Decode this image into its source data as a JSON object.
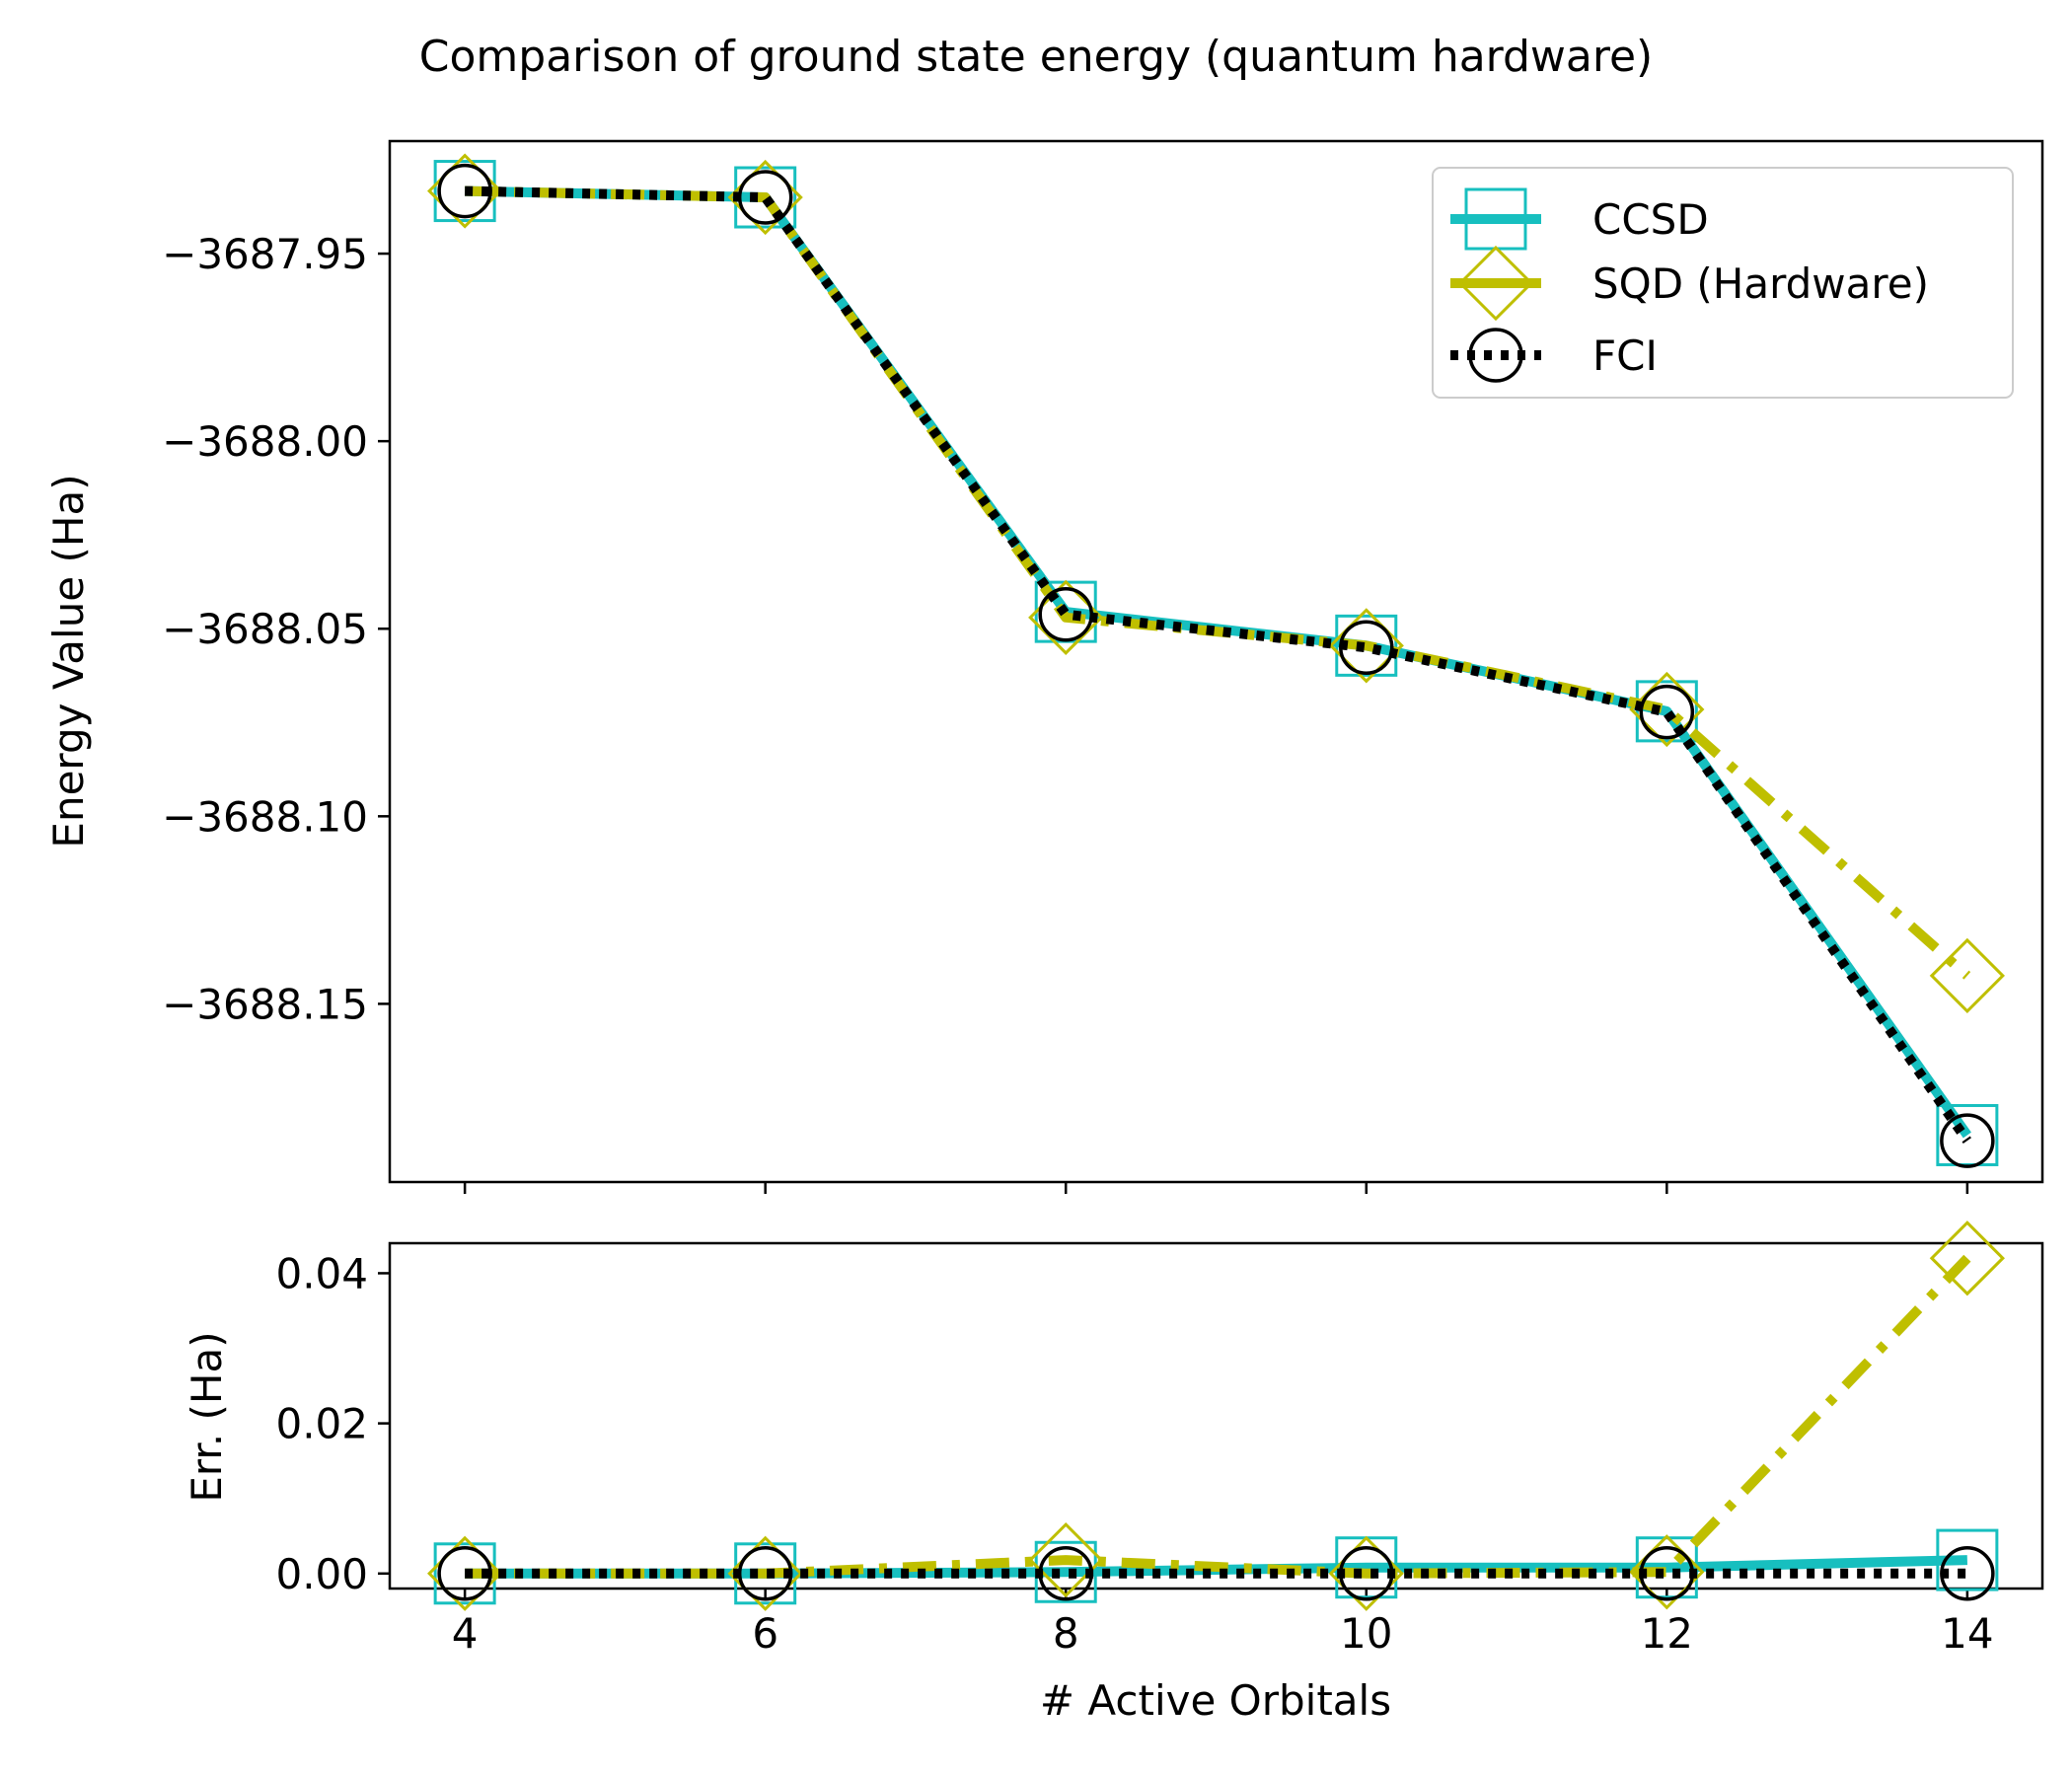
{
  "chart_data": {
    "title": "Comparison of ground state energy (quantum hardware)",
    "xlabel": "# Active Orbitals",
    "x": [
      4,
      6,
      8,
      10,
      12,
      14
    ],
    "x_ticks": [
      "4",
      "6",
      "8",
      "10",
      "12",
      "14"
    ],
    "panels": [
      {
        "type": "line",
        "ylabel": "Energy Value (Ha)",
        "ylim": [
          -3688.1975,
          -3687.92
        ],
        "y_ticks": [
          -3687.95,
          -3688.0,
          -3688.05,
          -3688.1,
          -3688.15
        ],
        "y_tick_labels": [
          "−3687.95",
          "−3688.00",
          "−3688.05",
          "−3688.10",
          "−3688.15"
        ],
        "series": [
          {
            "name": "CCSD",
            "values": [
              -3687.9333,
              -3687.935,
              -3688.0455,
              -3688.0545,
              -3688.072,
              -3688.185
            ]
          },
          {
            "name": "SQD (Hardware)",
            "values": [
              -3687.9333,
              -3687.935,
              -3688.047,
              -3688.0545,
              -3688.0715,
              -3688.1425
            ]
          },
          {
            "name": "FCI",
            "values": [
              -3687.9333,
              -3687.935,
              -3688.0462,
              -3688.055,
              -3688.0722,
              -3688.1865
            ]
          }
        ],
        "legend_position": "top-right"
      },
      {
        "type": "line",
        "ylabel": "Err. (Ha)",
        "ylim": [
          -0.002,
          0.044
        ],
        "y_ticks": [
          0.0,
          0.02,
          0.04
        ],
        "y_tick_labels": [
          "0.00",
          "0.02",
          "0.04"
        ],
        "series": [
          {
            "name": "CCSD",
            "values": [
              0.0,
              0.0,
              0.0002,
              0.0008,
              0.0008,
              0.0018
            ]
          },
          {
            "name": "SQD (Hardware)",
            "values": [
              0.0,
              0.0,
              0.0018,
              0.0,
              0.0002,
              0.042
            ]
          },
          {
            "name": "FCI",
            "values": [
              0.0,
              0.0,
              0.0,
              0.0,
              0.0,
              0.0
            ]
          }
        ]
      }
    ],
    "legend": [
      "CCSD",
      "SQD (Hardware)",
      "FCI"
    ],
    "colors": {
      "CCSD": "#17bfbf",
      "SQD (Hardware)": "#bfbf00",
      "FCI": "#000000"
    },
    "markers": {
      "CCSD": "square",
      "SQD (Hardware)": "diamond",
      "FCI": "circle"
    },
    "line_styles": {
      "CCSD": "solid",
      "SQD (Hardware)": "dash-dot",
      "FCI": "dotted"
    },
    "grid": false
  }
}
